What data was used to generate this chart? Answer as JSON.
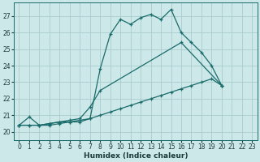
{
  "xlabel": "Humidex (Indice chaleur)",
  "background_color": "#cde8e8",
  "grid_color": "#a8cccc",
  "line_color": "#1a6b6b",
  "xlim": [
    -0.5,
    23.5
  ],
  "ylim": [
    19.5,
    27.8
  ],
  "yticks": [
    20,
    21,
    22,
    23,
    24,
    25,
    26,
    27
  ],
  "xticks": [
    0,
    1,
    2,
    3,
    4,
    5,
    6,
    7,
    8,
    9,
    10,
    11,
    12,
    13,
    14,
    15,
    16,
    17,
    18,
    19,
    20,
    21,
    22,
    23
  ],
  "series1": [
    [
      0,
      20.4
    ],
    [
      1,
      20.9
    ],
    [
      2,
      20.4
    ],
    [
      3,
      20.4
    ],
    [
      4,
      20.5
    ],
    [
      5,
      20.6
    ],
    [
      6,
      20.6
    ],
    [
      7,
      20.8
    ],
    [
      8,
      23.8
    ],
    [
      9,
      25.9
    ],
    [
      10,
      26.8
    ],
    [
      11,
      26.5
    ],
    [
      12,
      26.9
    ],
    [
      13,
      27.1
    ],
    [
      14,
      26.8
    ],
    [
      15,
      27.4
    ],
    [
      16,
      26.0
    ],
    [
      17,
      25.4
    ],
    [
      18,
      24.8
    ],
    [
      19,
      24.0
    ],
    [
      20,
      22.8
    ]
  ],
  "series2": [
    [
      0,
      20.4
    ],
    [
      1,
      20.4
    ],
    [
      2,
      20.4
    ],
    [
      3,
      20.5
    ],
    [
      4,
      20.6
    ],
    [
      5,
      20.7
    ],
    [
      6,
      20.8
    ],
    [
      7,
      21.5
    ],
    [
      8,
      22.5
    ],
    [
      16,
      25.4
    ],
    [
      20,
      22.8
    ]
  ],
  "series3": [
    [
      0,
      20.4
    ],
    [
      1,
      20.4
    ],
    [
      2,
      20.4
    ],
    [
      3,
      20.5
    ],
    [
      4,
      20.6
    ],
    [
      5,
      20.6
    ],
    [
      6,
      20.7
    ],
    [
      7,
      20.8
    ],
    [
      8,
      21.0
    ],
    [
      9,
      21.2
    ],
    [
      10,
      21.4
    ],
    [
      11,
      21.6
    ],
    [
      12,
      21.8
    ],
    [
      13,
      22.0
    ],
    [
      14,
      22.2
    ],
    [
      15,
      22.4
    ],
    [
      16,
      22.6
    ],
    [
      17,
      22.8
    ],
    [
      18,
      23.0
    ],
    [
      19,
      23.2
    ],
    [
      20,
      22.8
    ]
  ]
}
